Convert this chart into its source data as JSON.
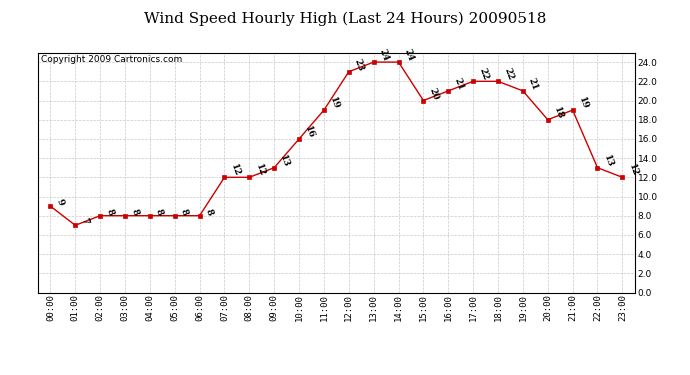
{
  "title": "Wind Speed Hourly High (Last 24 Hours) 20090518",
  "copyright": "Copyright 2009 Cartronics.com",
  "hours": [
    "00:00",
    "01:00",
    "02:00",
    "03:00",
    "04:00",
    "05:00",
    "06:00",
    "07:00",
    "08:00",
    "09:00",
    "10:00",
    "11:00",
    "12:00",
    "13:00",
    "14:00",
    "15:00",
    "16:00",
    "17:00",
    "18:00",
    "19:00",
    "20:00",
    "21:00",
    "22:00",
    "23:00"
  ],
  "values": [
    9,
    7,
    8,
    8,
    8,
    8,
    8,
    12,
    12,
    13,
    16,
    19,
    23,
    24,
    24,
    20,
    21,
    22,
    22,
    21,
    18,
    19,
    13,
    12
  ],
  "line_color": "#cc0000",
  "marker_color": "#cc0000",
  "background_color": "#ffffff",
  "grid_color": "#bbbbbb",
  "title_fontsize": 11,
  "copyright_fontsize": 6.5,
  "ylim": [
    0,
    25
  ],
  "yticks": [
    0.0,
    2.0,
    4.0,
    6.0,
    8.0,
    10.0,
    12.0,
    14.0,
    16.0,
    18.0,
    20.0,
    22.0,
    24.0
  ],
  "annotation_fontsize": 6.5,
  "tick_fontsize": 6.5,
  "annotation_rotation": -70
}
